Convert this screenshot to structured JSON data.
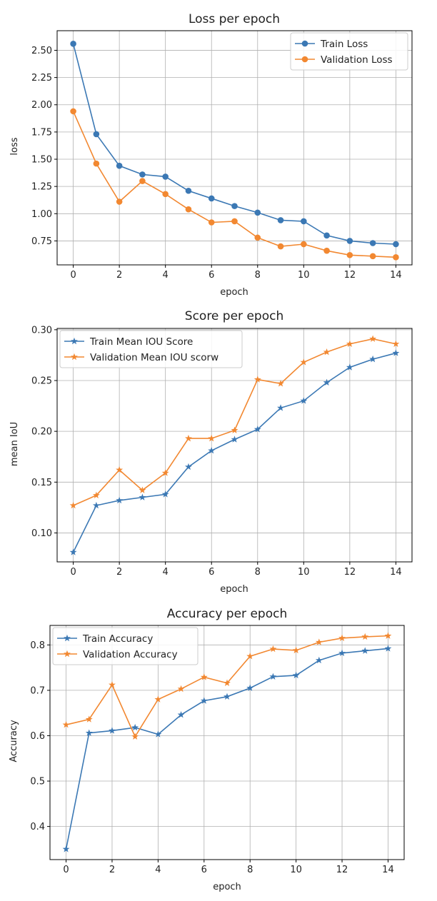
{
  "chart_data": [
    {
      "type": "line",
      "title": "Loss per epoch",
      "xlabel": "epoch",
      "ylabel": "loss",
      "x": [
        0,
        1,
        2,
        3,
        4,
        5,
        6,
        7,
        8,
        9,
        10,
        11,
        12,
        13,
        14
      ],
      "xticks": [
        0,
        2,
        4,
        6,
        8,
        10,
        12,
        14
      ],
      "xtick_labels": [
        "0",
        "2",
        "4",
        "6",
        "8",
        "10",
        "12",
        "14"
      ],
      "xlim": [
        -0.7,
        14.7
      ],
      "yticks": [
        0.75,
        1.0,
        1.25,
        1.5,
        1.75,
        2.0,
        2.25,
        2.5
      ],
      "ytick_labels": [
        "0.75",
        "1.00",
        "1.25",
        "1.50",
        "1.75",
        "2.00",
        "2.25",
        "2.50"
      ],
      "ylim": [
        0.53,
        2.68
      ],
      "grid": true,
      "legend_position": "top-right",
      "series": [
        {
          "name": "Train Loss",
          "color": "#3b78b4",
          "marker": "circle",
          "values": [
            2.56,
            1.73,
            1.44,
            1.36,
            1.34,
            1.21,
            1.14,
            1.07,
            1.01,
            0.94,
            0.93,
            0.8,
            0.75,
            0.73,
            0.72
          ]
        },
        {
          "name": "Validation Loss",
          "color": "#f28831",
          "marker": "circle",
          "values": [
            1.94,
            1.46,
            1.11,
            1.3,
            1.18,
            1.04,
            0.92,
            0.93,
            0.78,
            0.7,
            0.72,
            0.66,
            0.62,
            0.61,
            0.6
          ]
        }
      ]
    },
    {
      "type": "line",
      "title": "Score per epoch",
      "xlabel": "epoch",
      "ylabel": "mean IoU",
      "x": [
        0,
        1,
        2,
        3,
        4,
        5,
        6,
        7,
        8,
        9,
        10,
        11,
        12,
        13,
        14
      ],
      "xticks": [
        0,
        2,
        4,
        6,
        8,
        10,
        12,
        14
      ],
      "xtick_labels": [
        "0",
        "2",
        "4",
        "6",
        "8",
        "10",
        "12",
        "14"
      ],
      "xlim": [
        -0.7,
        14.7
      ],
      "yticks": [
        0.1,
        0.15,
        0.2,
        0.25,
        0.3
      ],
      "ytick_labels": [
        "0.10",
        "0.15",
        "0.20",
        "0.25",
        "0.30"
      ],
      "ylim": [
        0.0715,
        0.3013
      ],
      "grid": true,
      "legend_position": "top-left",
      "series": [
        {
          "name": "Train Mean IOU Score",
          "color": "#3b78b4",
          "marker": "star",
          "values": [
            0.081,
            0.127,
            0.132,
            0.135,
            0.138,
            0.165,
            0.181,
            0.192,
            0.202,
            0.223,
            0.23,
            0.248,
            0.263,
            0.271,
            0.277
          ]
        },
        {
          "name": "Validation Mean IOU scorw",
          "color": "#f28831",
          "marker": "star",
          "values": [
            0.127,
            0.137,
            0.162,
            0.142,
            0.159,
            0.193,
            0.193,
            0.201,
            0.251,
            0.247,
            0.268,
            0.278,
            0.286,
            0.291,
            0.286
          ]
        }
      ]
    },
    {
      "type": "line",
      "title": "Accuracy per epoch",
      "xlabel": "epoch",
      "ylabel": "Accuracy",
      "x": [
        0,
        1,
        2,
        3,
        4,
        5,
        6,
        7,
        8,
        9,
        10,
        11,
        12,
        13,
        14
      ],
      "xticks": [
        0,
        2,
        4,
        6,
        8,
        10,
        12,
        14
      ],
      "xtick_labels": [
        "0",
        "2",
        "4",
        "6",
        "8",
        "10",
        "12",
        "14"
      ],
      "xlim": [
        -0.7,
        14.7
      ],
      "yticks": [
        0.4,
        0.5,
        0.6,
        0.7,
        0.8
      ],
      "ytick_labels": [
        "0.4",
        "0.5",
        "0.6",
        "0.7",
        "0.8"
      ],
      "ylim": [
        0.327,
        0.843
      ],
      "grid": true,
      "legend_position": "top-left",
      "series": [
        {
          "name": "Train Accuracy",
          "color": "#3b78b4",
          "marker": "star",
          "values": [
            0.35,
            0.606,
            0.611,
            0.618,
            0.603,
            0.646,
            0.677,
            0.686,
            0.705,
            0.73,
            0.733,
            0.766,
            0.782,
            0.787,
            0.792
          ]
        },
        {
          "name": "Validation Accuracy",
          "color": "#f28831",
          "marker": "star",
          "values": [
            0.624,
            0.636,
            0.712,
            0.598,
            0.68,
            0.703,
            0.729,
            0.716,
            0.775,
            0.791,
            0.788,
            0.806,
            0.815,
            0.818,
            0.82
          ]
        }
      ]
    }
  ]
}
